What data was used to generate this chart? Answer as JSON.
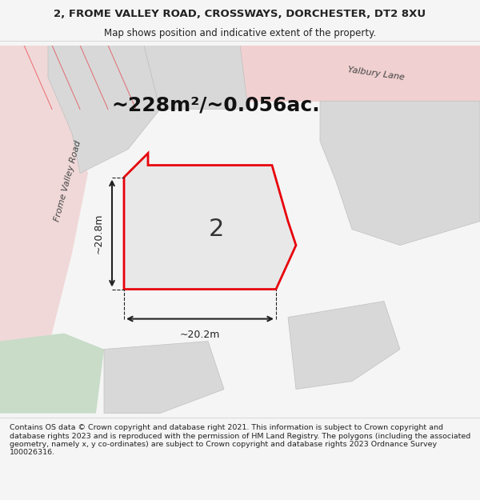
{
  "title_line1": "2, FROME VALLEY ROAD, CROSSWAYS, DORCHESTER, DT2 8XU",
  "title_line2": "Map shows position and indicative extent of the property.",
  "area_text": "~228m²/~0.056ac.",
  "number_label": "2",
  "dim_width": "~20.2m",
  "dim_height": "~20.8m",
  "road_label": "Frome Valley Road",
  "lane_label": "Yalbury Lane",
  "footer_text": "Contains OS data © Crown copyright and database right 2021. This information is subject to Crown copyright and database rights 2023 and is reproduced with the permission of HM Land Registry. The polygons (including the associated geometry, namely x, y co-ordinates) are subject to Crown copyright and database rights 2023 Ordnance Survey 100026316.",
  "bg_color": "#f5f5f5",
  "map_bg": "#ffffff",
  "plot_fill": "#e8e8e8",
  "plot_edge": "#e8000a",
  "road_fill": "#e8c8c8",
  "green_fill": "#c8e0c8",
  "neighbor_fill": "#d8d8d8",
  "dim_line_color": "#222222",
  "text_color": "#222222"
}
